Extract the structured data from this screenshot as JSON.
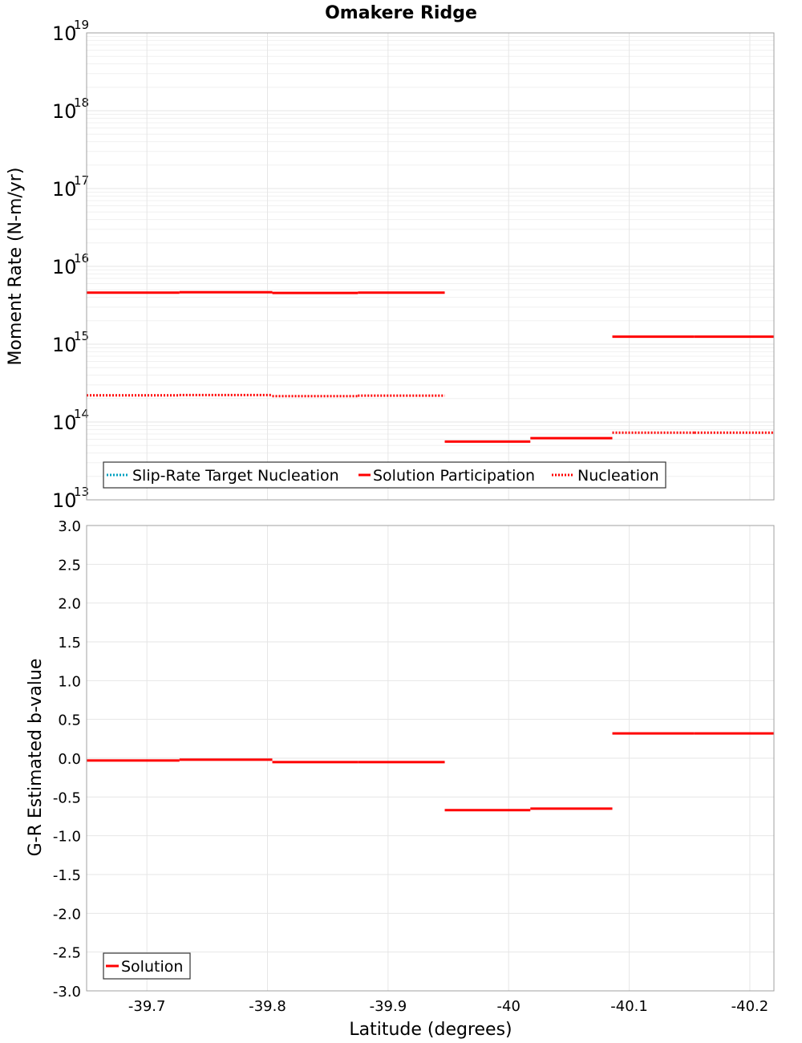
{
  "chart_data": [
    {
      "type": "line",
      "title": "Omakere Ridge",
      "xlabel": "",
      "ylabel": "Moment Rate (N-m/yr)",
      "yscale": "log",
      "ylim": [
        10000000000000.0,
        1e+19
      ],
      "xlim": [
        -39.65,
        -40.22
      ],
      "x_inverted": true,
      "ytick_base": "10",
      "ytick_exponents": [
        "13",
        "14",
        "15",
        "16",
        "17",
        "18",
        "19"
      ],
      "legend": [
        "Slip-Rate Target Nucleation",
        "Solution Participation",
        "Nucleation"
      ],
      "legend_position": "bottom-left",
      "colors": {
        "target": "#00a0c0",
        "solution": "#ff0000",
        "nucleation": "#ff0000"
      },
      "series": [
        {
          "name": "Slip-Rate Target Nucleation",
          "style": "dotted",
          "segments": []
        },
        {
          "name": "Solution Participation",
          "style": "solid",
          "segments": [
            {
              "x0": -39.65,
              "x1": -39.727,
              "y": 4600000000000000.0
            },
            {
              "x0": -39.727,
              "x1": -39.804,
              "y": 4650000000000000.0
            },
            {
              "x0": -39.804,
              "x1": -39.875,
              "y": 4550000000000000.0
            },
            {
              "x0": -39.875,
              "x1": -39.947,
              "y": 4600000000000000.0
            },
            {
              "x0": -39.947,
              "x1": -40.018,
              "y": 56000000000000.0
            },
            {
              "x0": -40.018,
              "x1": -40.086,
              "y": 62000000000000.0
            },
            {
              "x0": -40.086,
              "x1": -40.154,
              "y": 1250000000000000.0
            },
            {
              "x0": -40.154,
              "x1": -40.22,
              "y": 1250000000000000.0
            }
          ]
        },
        {
          "name": "Nucleation",
          "style": "dotted",
          "segments": [
            {
              "x0": -39.65,
              "x1": -39.727,
              "y": 220000000000000.0
            },
            {
              "x0": -39.727,
              "x1": -39.804,
              "y": 222000000000000.0
            },
            {
              "x0": -39.804,
              "x1": -39.875,
              "y": 215000000000000.0
            },
            {
              "x0": -39.875,
              "x1": -39.947,
              "y": 218000000000000.0
            },
            {
              "x0": -40.086,
              "x1": -40.154,
              "y": 73000000000000.0
            },
            {
              "x0": -40.154,
              "x1": -40.22,
              "y": 73000000000000.0
            }
          ]
        }
      ]
    },
    {
      "type": "line",
      "title": "",
      "xlabel": "Latitude (degrees)",
      "ylabel": "G-R Estimated b-value",
      "ylim": [
        -3.0,
        3.0
      ],
      "xlim": [
        -39.65,
        -40.22
      ],
      "x_inverted": true,
      "yticks": [
        "-3.0",
        "-2.5",
        "-2.0",
        "-1.5",
        "-1.0",
        "-0.5",
        "0.0",
        "0.5",
        "1.0",
        "1.5",
        "2.0",
        "2.5",
        "3.0"
      ],
      "xticks": [
        "-39.7",
        "-39.8",
        "-39.9",
        "-40",
        "-40.1",
        "-40.2"
      ],
      "legend": [
        "Solution"
      ],
      "legend_position": "bottom-left",
      "colors": {
        "solution": "#ff0000"
      },
      "series": [
        {
          "name": "Solution",
          "style": "solid",
          "segments": [
            {
              "x0": -39.65,
              "x1": -39.727,
              "y": -0.03
            },
            {
              "x0": -39.727,
              "x1": -39.804,
              "y": -0.02
            },
            {
              "x0": -39.804,
              "x1": -39.875,
              "y": -0.05
            },
            {
              "x0": -39.875,
              "x1": -39.947,
              "y": -0.05
            },
            {
              "x0": -39.947,
              "x1": -40.018,
              "y": -0.67
            },
            {
              "x0": -40.018,
              "x1": -40.086,
              "y": -0.65
            },
            {
              "x0": -40.086,
              "x1": -40.154,
              "y": 0.32
            },
            {
              "x0": -40.154,
              "x1": -40.22,
              "y": 0.32
            }
          ]
        }
      ]
    }
  ]
}
